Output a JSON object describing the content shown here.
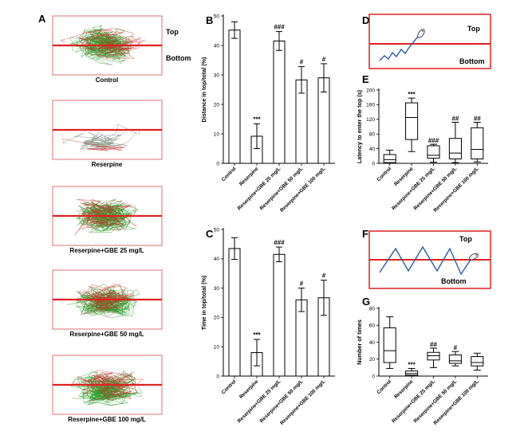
{
  "panel_letters": [
    "A",
    "B",
    "C",
    "D",
    "E",
    "F",
    "G"
  ],
  "panel_a": {
    "captions": [
      "Control",
      "Reserpine",
      "Reserpine+GBE 25 mg/L",
      "Reserpine+GBE 50 mg/L",
      "Reserpine+GBE 100 mg/L"
    ],
    "top_label": "Top",
    "bottom_label": "Bottom",
    "colors": {
      "frame": "#e07070",
      "midline": "#e02020",
      "track_green": "#2aa02a",
      "track_red": "#d03030",
      "track_gray": "#8a9a8a"
    }
  },
  "panel_d": {
    "top_label": "Top",
    "bottom_label": "Bottom"
  },
  "panel_f": {
    "top_label": "Top",
    "bottom_label": "Bottom"
  },
  "colors": {
    "box_frame": "#e02020",
    "path_blue": "#2a5ca8"
  },
  "chart_data": [
    {
      "id": "B",
      "type": "bar",
      "ylabel": "Distance in top/total (%)",
      "ylim": [
        0,
        50
      ],
      "yticks": [
        0,
        10,
        20,
        30,
        40,
        50
      ],
      "categories": [
        "Control",
        "Reserpine",
        "Reserpine+GBE 25 mg/L",
        "Reserpine+GBE 50 mg/L",
        "Reserpine+GBE 100 mg/L"
      ],
      "values": [
        45.2,
        9.2,
        41.5,
        28.3,
        29.0
      ],
      "errors": [
        2.8,
        4.2,
        3.2,
        4.5,
        4.8
      ],
      "annotations": [
        "",
        "***",
        "###",
        "#",
        "#"
      ]
    },
    {
      "id": "C",
      "type": "bar",
      "ylabel": "Time in top/total (%)",
      "ylim": [
        0,
        50
      ],
      "yticks": [
        0,
        10,
        20,
        30,
        40,
        50
      ],
      "categories": [
        "Control",
        "Reserpine",
        "Reserpine+GBE 25 mg/L",
        "Reserpine+GBE 50 mg/L",
        "Reserpine+GBE 100 mg/L"
      ],
      "values": [
        43.5,
        8.0,
        41.5,
        26.0,
        26.7
      ],
      "errors": [
        3.7,
        4.5,
        2.5,
        4.0,
        6.0
      ],
      "annotations": [
        "",
        "***",
        "###",
        "#",
        "#"
      ]
    },
    {
      "id": "E",
      "type": "box",
      "ylabel": "Latency to enter the top (s)",
      "ylim": [
        0,
        200
      ],
      "yticks": [
        0,
        40,
        80,
        120,
        160,
        200
      ],
      "categories": [
        "Control",
        "Reserpine",
        "Reserpine+GBE 25 mg/L",
        "Reserpine+GBE 50 mg/L",
        "Reserpine+GBE 100 mg/L"
      ],
      "boxes": [
        {
          "min": 0,
          "q1": 2,
          "median": 10,
          "q3": 24,
          "max": 36
        },
        {
          "min": 32,
          "q1": 65,
          "median": 125,
          "q3": 165,
          "max": 178
        },
        {
          "min": 3,
          "q1": 14,
          "median": 22,
          "q3": 48,
          "max": 52
        },
        {
          "min": 2,
          "q1": 12,
          "median": 28,
          "q3": 68,
          "max": 112
        },
        {
          "min": 4,
          "q1": 12,
          "median": 38,
          "q3": 97,
          "max": 112
        }
      ],
      "annotations": [
        "",
        "***",
        "###",
        "##",
        "##"
      ]
    },
    {
      "id": "G",
      "type": "box",
      "ylabel": "Number of times",
      "ylim": [
        0,
        80
      ],
      "yticks": [
        0,
        20,
        40,
        60,
        80
      ],
      "categories": [
        "Control",
        "Reserpine",
        "Reserpine+GBE 25 mg/L",
        "Reserpine+GBE 50 mg/L",
        "Reserpine+GBE 100 mg/L"
      ],
      "boxes": [
        {
          "min": 9,
          "q1": 16,
          "median": 30,
          "q3": 57,
          "max": 70
        },
        {
          "min": 0,
          "q1": 1,
          "median": 3,
          "q3": 6,
          "max": 9
        },
        {
          "min": 10,
          "q1": 19,
          "median": 24,
          "q3": 28,
          "max": 33
        },
        {
          "min": 12,
          "q1": 15,
          "median": 18,
          "q3": 25,
          "max": 29
        },
        {
          "min": 7,
          "q1": 12,
          "median": 16,
          "q3": 23,
          "max": 27
        }
      ],
      "annotations": [
        "",
        "***",
        "##",
        "#",
        ""
      ]
    }
  ]
}
